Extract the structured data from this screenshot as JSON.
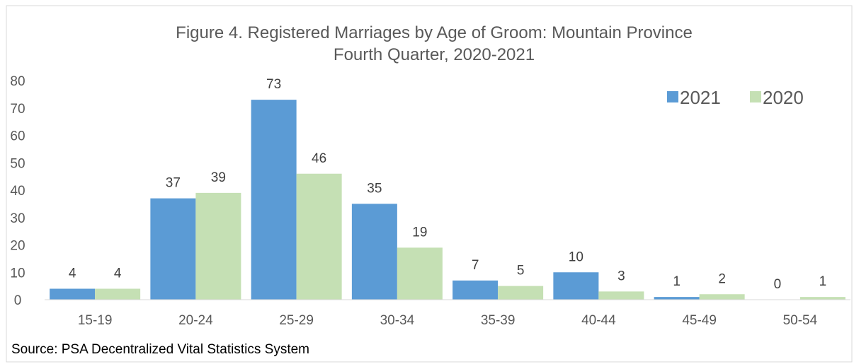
{
  "chart_data": {
    "type": "bar",
    "title": "Figure 4.  Registered Marriages by Age of Groom: Mountain Province",
    "subtitle": "Fourth Quarter, 2020-2021",
    "categories": [
      "15-19",
      "20-24",
      "25-29",
      "30-34",
      "35-39",
      "40-44",
      "45-49",
      "50-54"
    ],
    "series": [
      {
        "name": "2021",
        "color": "#5b9bd5",
        "values": [
          4,
          37,
          73,
          35,
          7,
          10,
          1,
          0
        ]
      },
      {
        "name": "2020",
        "color": "#c5e0b4",
        "values": [
          4,
          39,
          46,
          19,
          5,
          3,
          2,
          1
        ]
      }
    ],
    "y_ticks": [
      0,
      10,
      20,
      30,
      40,
      50,
      60,
      70,
      80
    ],
    "ylim": [
      0,
      80
    ],
    "xlabel": "",
    "ylabel": "",
    "legend_position": "top-right",
    "data_labels": true,
    "grid": false
  },
  "source": "Source: PSA Decentralized Vital Statistics System"
}
